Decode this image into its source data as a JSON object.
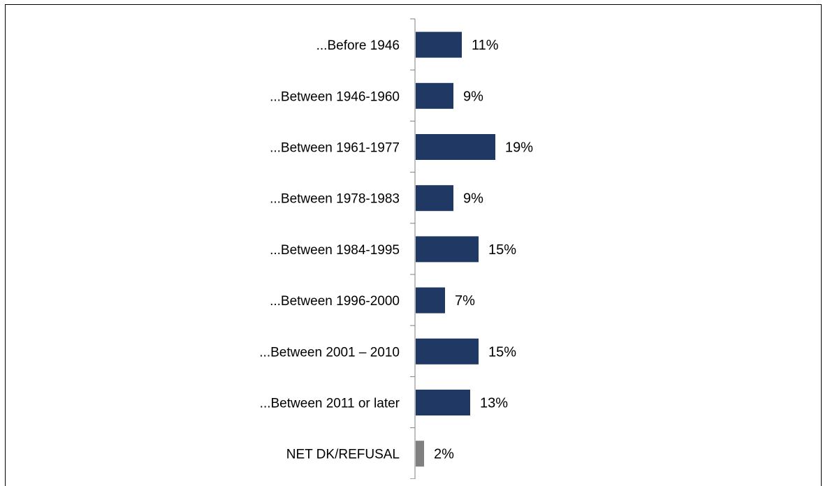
{
  "chart_data": {
    "type": "bar",
    "orientation": "horizontal",
    "categories": [
      "...Before 1946",
      "...Between 1946-1960",
      "...Between 1961-1977",
      "...Between 1978-1983",
      "...Between 1984-1995",
      "...Between 1996-2000",
      "...Between 2001 – 2010",
      "...Between 2011 or later",
      "NET DK/REFUSAL"
    ],
    "values": [
      11,
      9,
      19,
      9,
      15,
      7,
      15,
      13,
      2
    ],
    "value_labels": [
      "11%",
      "9%",
      "19%",
      "9%",
      "15%",
      "7%",
      "15%",
      "13%",
      "2%"
    ],
    "bar_colors": [
      "#203864",
      "#203864",
      "#203864",
      "#203864",
      "#203864",
      "#203864",
      "#203864",
      "#203864",
      "#808080"
    ],
    "title": "",
    "xlabel": "",
    "ylabel": "",
    "xlim": [
      0,
      100
    ],
    "grid": false,
    "legend": "none"
  }
}
